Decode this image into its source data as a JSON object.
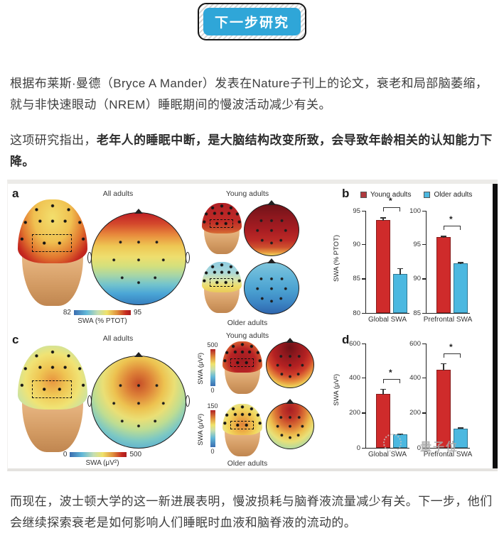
{
  "header_button": {
    "label": "下一步研究",
    "bg_color": "#2fa6d8"
  },
  "paragraphs": {
    "p1": "根据布莱斯·曼德（Bryce A Mander）发表在Nature子刊上的论文，衰老和局部脑萎缩，就与非快速眼动（NREM）睡眠期间的慢波活动减少有关。",
    "p2_normal": "这项研究指出，",
    "p2_bold": "老年人的睡眠中断，是大脑结构改变所致，会导致年龄相关的认知能力下降。",
    "p3": "而现在，波士顿大学的这一新进展表明，慢波损耗与脑脊液流量减少有关。下一步，他们会继续探索衰老是如何影响人们睡眠时血液和脑脊液的流动的。"
  },
  "figure": {
    "panel_a": {
      "label": "a",
      "title": "All adults",
      "colorbar": {
        "min": "82",
        "max": "95",
        "label": "SWA (% PTOT)"
      }
    },
    "top_middle": {
      "young_title": "Young adults",
      "older_label": "Older adults"
    },
    "panel_b": {
      "label": "b",
      "legend": [
        {
          "name": "Young adults",
          "color": "#b03a3e"
        },
        {
          "name": "Older adults",
          "color": "#4cb8e0"
        }
      ]
    },
    "panel_c": {
      "label": "c",
      "title": "All adults",
      "colorbar": {
        "min": "0",
        "max": "500",
        "label": "SWA (μV²)"
      }
    },
    "bottom_middle": {
      "young_title": "Young adults",
      "older_label": "Older adults",
      "young_cbar": {
        "max": "500",
        "min": "0",
        "label": "SWA (μV²)"
      },
      "older_cbar": {
        "max": "150",
        "min": "0",
        "label": "SWA (μV²)"
      }
    },
    "panel_d": {
      "label": "d"
    },
    "watermark": "量子位"
  },
  "chart_data": [
    {
      "id": "b_global",
      "type": "bar",
      "categories": [
        "Young adults",
        "Older adults"
      ],
      "values": [
        93.5,
        85.7
      ],
      "errors": [
        0.5,
        0.9
      ],
      "colors": [
        "#cf2b2b",
        "#4cb8e0"
      ],
      "ylim": [
        80,
        95
      ],
      "yticks": [
        80,
        85,
        90,
        95
      ],
      "ylabel": "SWA (% PTOT)",
      "xlabel": "Global SWA",
      "sig": "*"
    },
    {
      "id": "b_prefrontal",
      "type": "bar",
      "categories": [
        "Young adults",
        "Older adults"
      ],
      "values": [
        96.0,
        92.2
      ],
      "errors": [
        0.3,
        0.3
      ],
      "colors": [
        "#cf2b2b",
        "#4cb8e0"
      ],
      "ylim": [
        85,
        100
      ],
      "yticks": [
        85,
        90,
        95,
        100
      ],
      "ylabel": "",
      "xlabel": "Prefrontal SWA",
      "sig": "*"
    },
    {
      "id": "d_global",
      "type": "bar",
      "categories": [
        "Young adults",
        "Older adults"
      ],
      "values": [
        305,
        75
      ],
      "errors": [
        35,
        10
      ],
      "colors": [
        "#cf2b2b",
        "#4cb8e0"
      ],
      "ylim": [
        0,
        600
      ],
      "yticks": [
        0,
        200,
        400,
        600
      ],
      "ylabel": "SWA (μV²)",
      "xlabel": "Global SWA",
      "sig": "*"
    },
    {
      "id": "d_prefrontal",
      "type": "bar",
      "categories": [
        "Young adults",
        "Older adults"
      ],
      "values": [
        445,
        110
      ],
      "errors": [
        40,
        10
      ],
      "colors": [
        "#cf2b2b",
        "#4cb8e0"
      ],
      "ylim": [
        0,
        600
      ],
      "yticks": [
        0,
        200,
        400,
        600
      ],
      "ylabel": "",
      "xlabel": "Prefrontal SWA",
      "sig": "*"
    }
  ]
}
